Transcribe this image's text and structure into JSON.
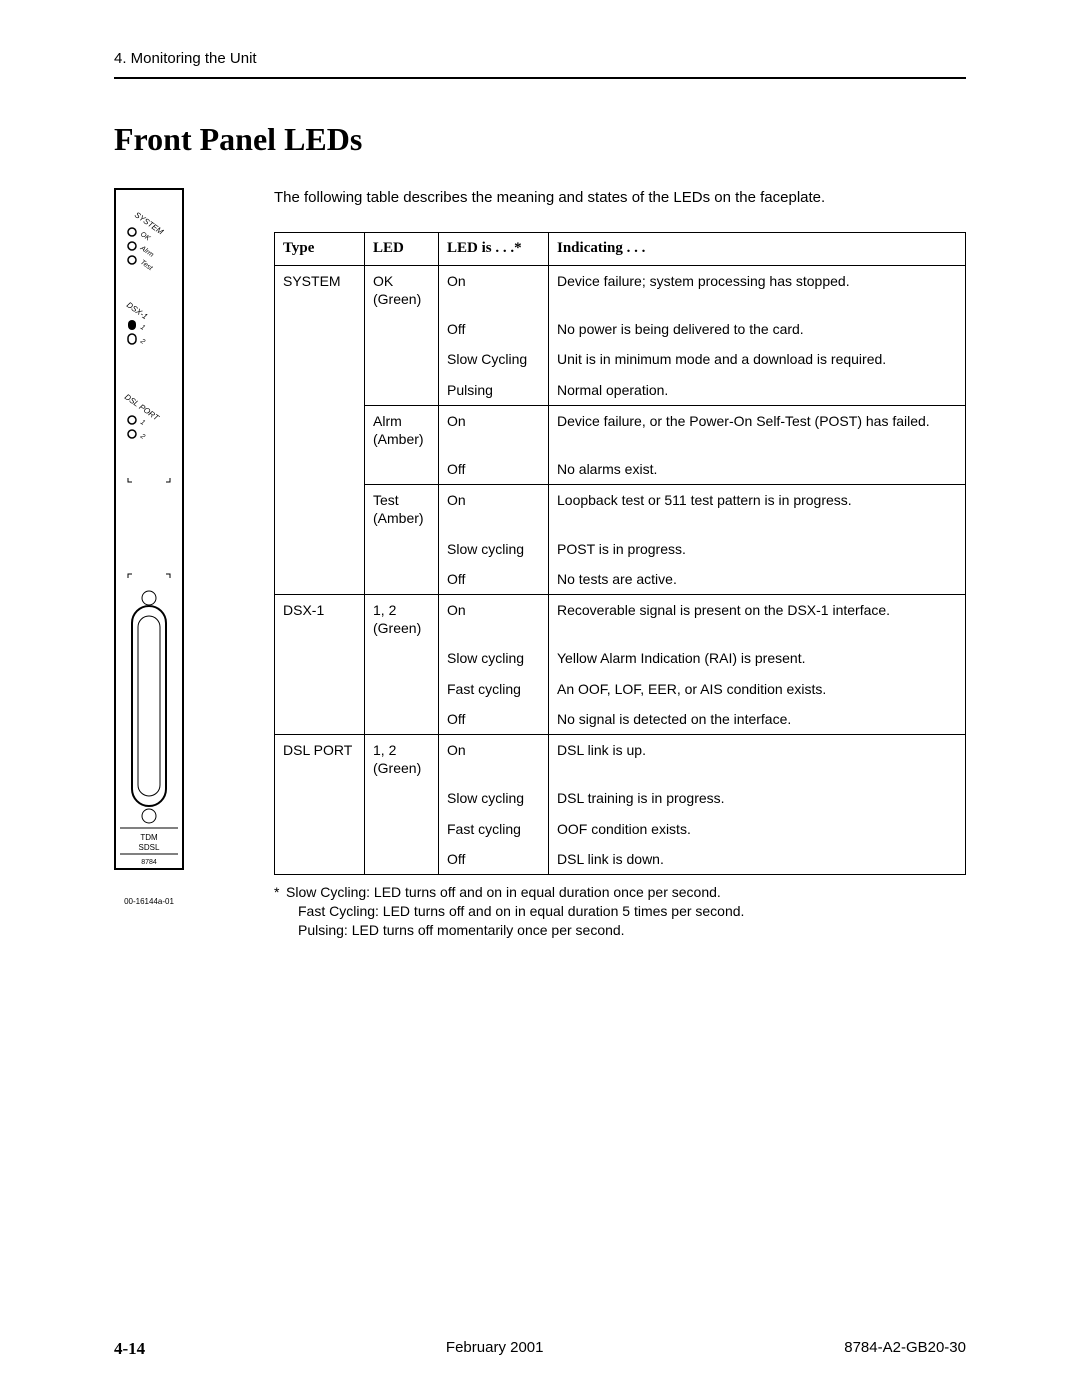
{
  "header": {
    "breadcrumb": "4. Monitoring the Unit"
  },
  "title": "Front Panel LEDs",
  "intro": "The following table describes the meaning and states of the LEDs on the faceplate.",
  "faceplate": {
    "section_system": "SYSTEM",
    "leds_system": [
      "OK",
      "Alrm",
      "Test"
    ],
    "section_dsx": "DSX-1",
    "dsx_indices": [
      "1",
      "2"
    ],
    "section_dslport": "DSL PORT",
    "dslport_indices": [
      "1",
      "2"
    ],
    "conn_label_top": "TDM",
    "conn_label_bot": "SDSL",
    "model": "8784",
    "fignum": "00-16144a-01"
  },
  "table": {
    "headers": {
      "type": "Type",
      "led": "LED",
      "state": "LED is . . .*",
      "indicating": "Indicating . . ."
    },
    "rows": [
      {
        "type": "SYSTEM",
        "led": "OK\n(Green)",
        "state": "On",
        "indicating": "Device failure; system processing has stopped.",
        "b_type_top": true,
        "b_led_top": true,
        "b_state_top": true,
        "b_ind_top": true
      },
      {
        "type": "",
        "led": "",
        "state": "Off",
        "indicating": "No power is being delivered to the card."
      },
      {
        "type": "",
        "led": "",
        "state": "Slow Cycling",
        "indicating": "Unit is in minimum mode and a download is required."
      },
      {
        "type": "",
        "led": "",
        "state": "Pulsing",
        "indicating": "Normal operation."
      },
      {
        "type": "",
        "led": "Alrm\n(Amber)",
        "state": "On",
        "indicating": "Device failure, or the Power-On Self-Test (POST) has failed.",
        "b_led_top": true,
        "b_state_top": true,
        "b_ind_top": true
      },
      {
        "type": "",
        "led": "",
        "state": "Off",
        "indicating": "No alarms exist."
      },
      {
        "type": "",
        "led": "Test\n(Amber)",
        "state": "On",
        "indicating": "Loopback test or 511 test pattern is in progress.",
        "b_led_top": true,
        "b_state_top": true,
        "b_ind_top": true
      },
      {
        "type": "",
        "led": "",
        "state": "Slow cycling",
        "indicating": "POST is in progress."
      },
      {
        "type": "",
        "led": "",
        "state": "Off",
        "indicating": "No tests are active."
      },
      {
        "type": "DSX-1",
        "led": "1, 2\n(Green)",
        "state": "On",
        "indicating": "Recoverable signal is present on the DSX-1 interface.",
        "b_type_top": true,
        "b_led_top": true,
        "b_state_top": true,
        "b_ind_top": true
      },
      {
        "type": "",
        "led": "",
        "state": "Slow cycling",
        "indicating": "Yellow Alarm Indication (RAI) is present."
      },
      {
        "type": "",
        "led": "",
        "state": "Fast cycling",
        "indicating": "An OOF, LOF, EER, or AIS condition exists."
      },
      {
        "type": "",
        "led": "",
        "state": "Off",
        "indicating": "No signal is detected on the interface."
      },
      {
        "type": "DSL PORT",
        "led": "1, 2\n(Green)",
        "state": "On",
        "indicating": "DSL link is up.",
        "b_type_top": true,
        "b_led_top": true,
        "b_state_top": true,
        "b_ind_top": true
      },
      {
        "type": "",
        "led": "",
        "state": "Slow cycling",
        "indicating": "DSL training is in progress."
      },
      {
        "type": "",
        "led": "",
        "state": "Fast cycling",
        "indicating": "OOF condition exists."
      },
      {
        "type": "",
        "led": "",
        "state": "Off",
        "indicating": "DSL link is down.",
        "b_type_bot": true,
        "b_led_bot": true,
        "b_state_bot": true,
        "b_ind_bot": true
      }
    ]
  },
  "footnotes": {
    "star": "*",
    "l1": "Slow Cycling: LED turns off and on in equal duration once per second.",
    "l2": "Fast Cycling: LED turns off and on in equal duration 5 times per second.",
    "l3": "Pulsing: LED turns off momentarily once per second."
  },
  "footer": {
    "page": "4-14",
    "date": "February 2001",
    "docnum": "8784-A2-GB20-30"
  }
}
